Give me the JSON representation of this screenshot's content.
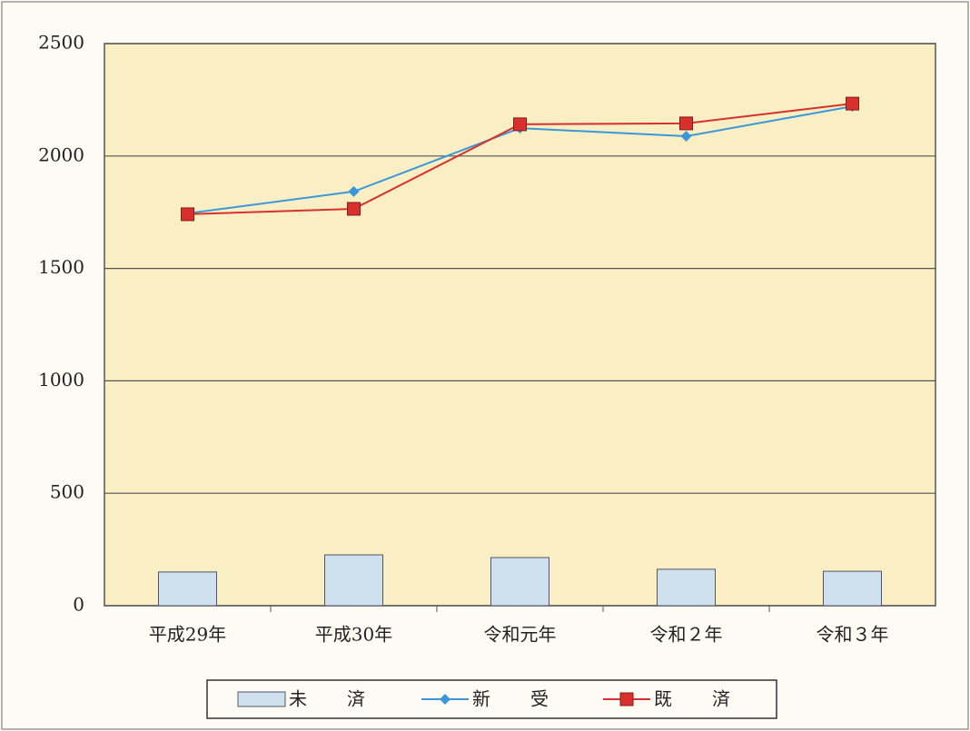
{
  "chart_data": {
    "type": "combo",
    "categories": [
      "平成29年",
      "平成30年",
      "令和元年",
      "令和２年",
      "令和３年"
    ],
    "series": [
      {
        "name": "未　済",
        "type": "bar",
        "color": "#cfe1ee",
        "values": [
          150,
          226,
          214,
          162,
          153
        ]
      },
      {
        "name": "新　受",
        "type": "line",
        "marker": "diamond",
        "color": "#3a98d8",
        "values": [
          1745,
          1842,
          2124,
          2088,
          2221
        ]
      },
      {
        "name": "既　済",
        "type": "line",
        "marker": "square",
        "color": "#d8302c",
        "values": [
          1741,
          1765,
          2141,
          2145,
          2233
        ]
      }
    ],
    "ylim": [
      0,
      2500
    ],
    "yticks": [
      0,
      500,
      1000,
      1500,
      2000,
      2500
    ],
    "grid": true,
    "legend": "bottom"
  }
}
